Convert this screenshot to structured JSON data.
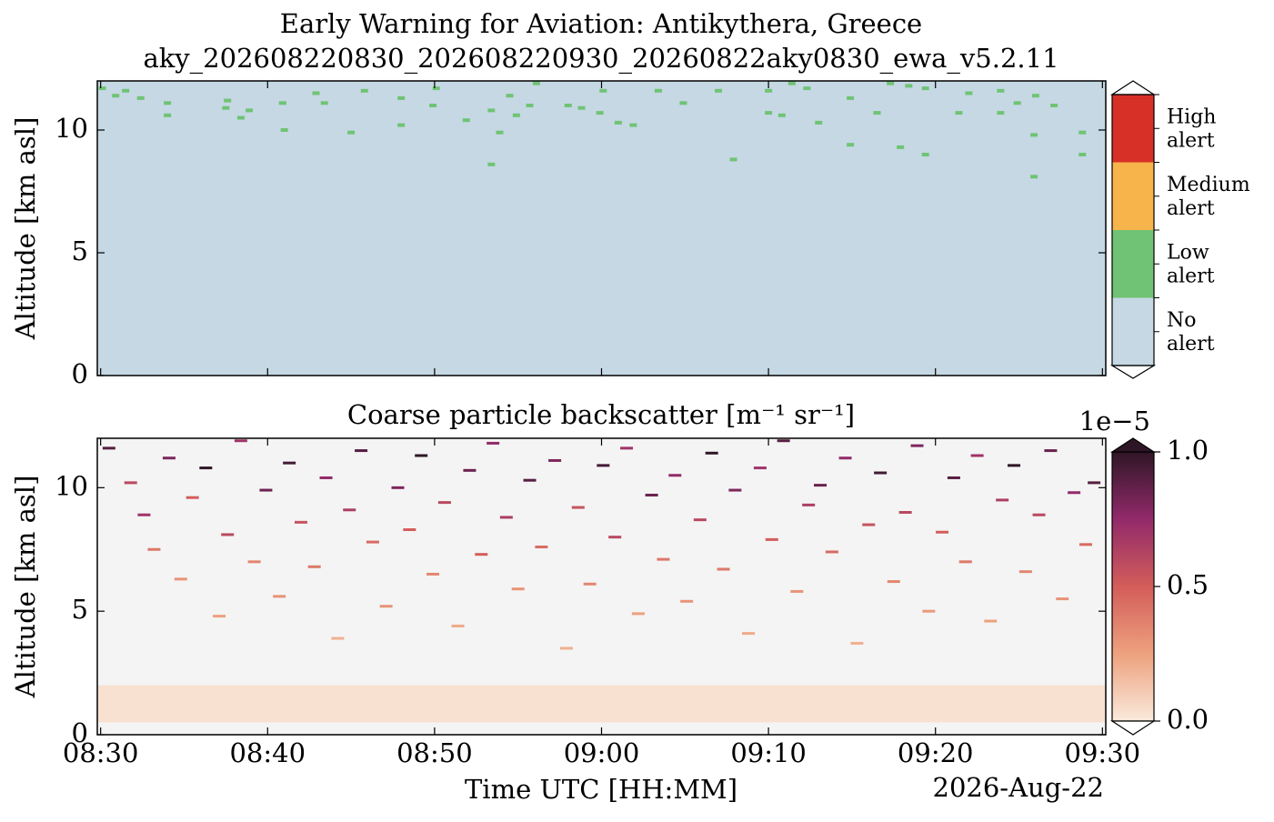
{
  "chart_data": [
    {
      "type": "category_heatmap",
      "title": "Early Warning for Aviation: Antikythera, Greece",
      "subtitle": "aky_202608220830_202608220930_20260822aky0830_ewa_v5.2.11",
      "ylabel": "Altitude [km asl]",
      "xlim": [
        -0.2,
        60.2
      ],
      "ylim": [
        0,
        12
      ],
      "yticks": [
        0,
        5,
        10
      ],
      "classes": [
        "No alert",
        "Low alert",
        "Medium alert",
        "High alert"
      ],
      "colors": [
        "#c5d8e4",
        "#70c374",
        "#f6b44b",
        "#d73027"
      ],
      "background_class": 0,
      "cell_class": 1,
      "cells": {
        "x": [
          0.9,
          0.1,
          1.5,
          2.4,
          4.0,
          4.0,
          7.5,
          7.6,
          8.9,
          8.4,
          10.9,
          11.0,
          12.9,
          15.0,
          13.4,
          18.0,
          18.0,
          15.8,
          19.9,
          20.1,
          21.9,
          23.4,
          23.4,
          23.9,
          24.5,
          24.9,
          25.7,
          26.1,
          28.0,
          28.8,
          29.9,
          30.1,
          31.0,
          31.9,
          33.4,
          34.9,
          37.0,
          37.9,
          40.0,
          40.0,
          40.8,
          43.0,
          41.4,
          42.3,
          44.9,
          44.9,
          46.5,
          47.3,
          47.9,
          48.4,
          49.4,
          49.4,
          51.4,
          52.0,
          53.9,
          53.9,
          54.9,
          55.9,
          56.0,
          58.8,
          58.8,
          57.1,
          55.9
        ],
        "y": [
          11.4,
          11.7,
          11.6,
          11.3,
          11.1,
          10.6,
          10.9,
          11.2,
          10.8,
          10.5,
          11.1,
          10.0,
          11.5,
          9.9,
          11.1,
          11.3,
          10.2,
          11.6,
          11.0,
          11.7,
          10.4,
          10.8,
          8.6,
          9.9,
          11.4,
          10.6,
          11.0,
          11.9,
          11.0,
          10.9,
          10.7,
          11.6,
          10.3,
          10.2,
          11.6,
          11.1,
          11.6,
          8.8,
          11.6,
          10.7,
          10.6,
          10.3,
          11.9,
          11.7,
          11.3,
          9.4,
          10.7,
          11.9,
          9.3,
          11.8,
          9.0,
          11.7,
          10.7,
          11.5,
          11.6,
          10.7,
          11.1,
          9.8,
          11.4,
          9.9,
          9.0,
          11.0,
          8.1
        ]
      }
    },
    {
      "type": "heatmap",
      "title": "Coarse particle backscatter [m⁻¹ sr⁻¹]",
      "ylabel": "Altitude [km asl]",
      "xlabel": "Time UTC [HH:MM]",
      "date": "2026-Aug-22",
      "xlim": [
        -0.2,
        60.2
      ],
      "ylim": [
        0,
        12
      ],
      "yticks": [
        0,
        5,
        10
      ],
      "xticks": [
        {
          "value": 0,
          "label": "08:30"
        },
        {
          "value": 10,
          "label": "08:40"
        },
        {
          "value": 20,
          "label": "08:50"
        },
        {
          "value": 30,
          "label": "09:00"
        },
        {
          "value": 40,
          "label": "09:10"
        },
        {
          "value": 50,
          "label": "09:20"
        },
        {
          "value": 60,
          "label": "09:30"
        }
      ],
      "clim": [
        0,
        1
      ],
      "cticks": [
        {
          "value": 0,
          "label": "0.0"
        },
        {
          "value": 0.5,
          "label": "0.5"
        },
        {
          "value": 1,
          "label": "1.0"
        }
      ],
      "scale_label": "1e−5",
      "colormap": [
        "#faeadc",
        "#eda17e",
        "#d35d5a",
        "#922a6a",
        "#2f1626"
      ],
      "under_color": "#f4f4f4",
      "base_layer": {
        "bottom": 0.5,
        "top": 2,
        "value": 0.03
      },
      "cells": [
        [
          0.5,
          11.6,
          0.9
        ],
        [
          1.8,
          10.2,
          0.6
        ],
        [
          2.6,
          8.9,
          0.7
        ],
        [
          3.2,
          7.5,
          0.4
        ],
        [
          4.1,
          11.2,
          0.8
        ],
        [
          4.8,
          6.3,
          0.3
        ],
        [
          5.5,
          9.6,
          0.5
        ],
        [
          6.3,
          10.8,
          1.0
        ],
        [
          7.1,
          4.8,
          0.25
        ],
        [
          7.6,
          8.1,
          0.6
        ],
        [
          8.4,
          11.9,
          0.7
        ],
        [
          9.2,
          7.0,
          0.35
        ],
        [
          9.9,
          9.9,
          0.85
        ],
        [
          10.7,
          5.6,
          0.3
        ],
        [
          11.3,
          11.0,
          0.95
        ],
        [
          12.0,
          8.6,
          0.55
        ],
        [
          12.8,
          6.8,
          0.4
        ],
        [
          13.5,
          10.4,
          0.75
        ],
        [
          14.2,
          3.9,
          0.2
        ],
        [
          14.9,
          9.1,
          0.65
        ],
        [
          15.6,
          11.5,
          0.9
        ],
        [
          16.3,
          7.8,
          0.45
        ],
        [
          17.1,
          5.2,
          0.3
        ],
        [
          17.8,
          10.0,
          0.8
        ],
        [
          18.5,
          8.3,
          0.5
        ],
        [
          19.2,
          11.3,
          1.0
        ],
        [
          19.9,
          6.5,
          0.35
        ],
        [
          20.6,
          9.4,
          0.6
        ],
        [
          21.4,
          4.4,
          0.22
        ],
        [
          22.1,
          10.7,
          0.85
        ],
        [
          22.8,
          7.3,
          0.5
        ],
        [
          23.5,
          11.8,
          0.75
        ],
        [
          24.3,
          8.8,
          0.65
        ],
        [
          25.0,
          5.9,
          0.3
        ],
        [
          25.7,
          10.3,
          0.9
        ],
        [
          26.4,
          7.6,
          0.45
        ],
        [
          27.2,
          11.1,
          0.8
        ],
        [
          27.9,
          3.5,
          0.2
        ],
        [
          28.6,
          9.2,
          0.55
        ],
        [
          29.3,
          6.1,
          0.35
        ],
        [
          30.1,
          10.9,
          0.95
        ],
        [
          30.8,
          8.0,
          0.6
        ],
        [
          31.5,
          11.6,
          0.7
        ],
        [
          32.2,
          4.9,
          0.25
        ],
        [
          33.0,
          9.7,
          0.85
        ],
        [
          33.7,
          7.1,
          0.4
        ],
        [
          34.4,
          10.5,
          0.75
        ],
        [
          35.1,
          5.4,
          0.3
        ],
        [
          35.9,
          8.7,
          0.6
        ],
        [
          36.6,
          11.4,
          1.0
        ],
        [
          37.3,
          6.7,
          0.4
        ],
        [
          38.0,
          9.9,
          0.8
        ],
        [
          38.8,
          4.1,
          0.22
        ],
        [
          39.5,
          10.8,
          0.7
        ],
        [
          40.2,
          7.9,
          0.5
        ],
        [
          40.9,
          11.9,
          0.9
        ],
        [
          41.7,
          5.8,
          0.3
        ],
        [
          42.4,
          9.3,
          0.65
        ],
        [
          43.1,
          10.1,
          0.85
        ],
        [
          43.8,
          7.4,
          0.45
        ],
        [
          44.6,
          11.2,
          0.75
        ],
        [
          45.3,
          3.7,
          0.2
        ],
        [
          46.0,
          8.5,
          0.55
        ],
        [
          46.7,
          10.6,
          0.95
        ],
        [
          47.5,
          6.2,
          0.35
        ],
        [
          48.2,
          9.0,
          0.6
        ],
        [
          48.9,
          11.7,
          0.8
        ],
        [
          49.6,
          5.0,
          0.28
        ],
        [
          50.4,
          8.2,
          0.5
        ],
        [
          51.1,
          10.4,
          0.9
        ],
        [
          51.8,
          7.0,
          0.4
        ],
        [
          52.5,
          11.3,
          0.7
        ],
        [
          53.3,
          4.6,
          0.25
        ],
        [
          54.0,
          9.5,
          0.65
        ],
        [
          54.7,
          10.9,
          1.0
        ],
        [
          55.4,
          6.6,
          0.35
        ],
        [
          56.2,
          8.9,
          0.6
        ],
        [
          56.9,
          11.5,
          0.85
        ],
        [
          57.6,
          5.5,
          0.3
        ],
        [
          58.3,
          9.8,
          0.75
        ],
        [
          59.0,
          7.7,
          0.45
        ],
        [
          59.5,
          10.2,
          0.9
        ]
      ]
    }
  ]
}
